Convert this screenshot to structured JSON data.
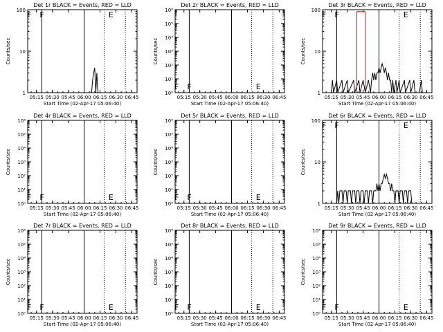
{
  "page": {
    "background": "#ffffff",
    "line_color": "#000000",
    "lld_color": "#ff0000"
  },
  "chart_data": [
    {
      "id": "det1",
      "type": "line",
      "title": "Det 1r BLACK = Events, RED = LLD",
      "xlabel": "Start Time (02-Apr-17 05:06:40)",
      "ylabel": "Counts/sec",
      "xticks": [
        "05:15",
        "05:30",
        "05:45",
        "06:00",
        "06:15",
        "06:30",
        "06:45"
      ],
      "yscale": "log",
      "ylim": [
        1,
        100
      ],
      "yticks": [
        "1",
        "10",
        "100"
      ],
      "flags": [
        {
          "label": "F",
          "x": "05:08"
        },
        {
          "label": "F",
          "x": "05:20"
        },
        {
          "label": "E",
          "x": "06:25"
        }
      ],
      "solid_lines": [
        "05:20",
        "06:00"
      ],
      "dotted_lines": [
        "06:19",
        "06:39"
      ],
      "series": [
        {
          "name": "BLACK = Events",
          "color": "#000000",
          "points": [
            [
              "06:07",
              1
            ],
            [
              "06:08",
              2
            ],
            [
              "06:09",
              3
            ],
            [
              "06:10",
              4
            ],
            [
              "06:11",
              1
            ],
            [
              "06:12",
              3
            ],
            [
              "06:13",
              1
            ]
          ]
        },
        {
          "name": "RED = LLD",
          "color": "#ff0000",
          "points": []
        }
      ]
    },
    {
      "id": "det2",
      "type": "line",
      "title": "Det 2r BLACK = Events, RED = LLD",
      "xlabel": "Start Time (02-Apr-17 05:06:40)",
      "ylabel": "Counts/sec",
      "xticks": [
        "05:15",
        "05:30",
        "05:45",
        "06:00",
        "06:15",
        "06:30",
        "06:45"
      ],
      "yscale": "log",
      "ylim": [
        1,
        1000000
      ],
      "yticks": [
        "10⁰",
        "10¹",
        "10²",
        "10³",
        "10⁴",
        "10⁵",
        "10⁶"
      ],
      "flags": [
        {
          "label": "F",
          "x": "05:08"
        },
        {
          "label": "F",
          "x": "05:20"
        },
        {
          "label": "E",
          "x": "06:25"
        }
      ],
      "solid_lines": [
        "05:20",
        "06:00"
      ],
      "dotted_lines": [
        "06:19",
        "06:39"
      ],
      "series": [
        {
          "name": "BLACK = Events",
          "color": "#000000",
          "points": []
        },
        {
          "name": "RED = LLD",
          "color": "#ff0000",
          "points": []
        }
      ]
    },
    {
      "id": "det3",
      "type": "line",
      "title": "Det 3r BLACK = Events, RED = LLD",
      "xlabel": "Start Time (02-Apr-17 05:06:40)",
      "ylabel": "Counts/sec",
      "xticks": [
        "05:15",
        "05:30",
        "05:45",
        "06:00",
        "06:15",
        "06:30",
        "06:45"
      ],
      "yscale": "log",
      "ylim": [
        1,
        100
      ],
      "yticks": [
        "1",
        "10",
        "100"
      ],
      "flags": [
        {
          "label": "F",
          "x": "05:08"
        },
        {
          "label": "F",
          "x": "05:20"
        },
        {
          "label": "E",
          "x": "06:25"
        }
      ],
      "solid_lines": [
        "05:20",
        "06:00"
      ],
      "dotted_lines": [
        "06:19",
        "06:39"
      ],
      "series": [
        {
          "name": "BLACK = Events",
          "color": "#000000",
          "points": [
            [
              "05:15",
              1
            ],
            [
              "05:16",
              2
            ],
            [
              "05:17",
              1
            ],
            [
              "05:20",
              2
            ],
            [
              "05:21",
              1
            ],
            [
              "05:25",
              2
            ],
            [
              "05:26",
              1
            ],
            [
              "05:30",
              2
            ],
            [
              "05:31",
              1
            ],
            [
              "05:36",
              2
            ],
            [
              "05:37",
              1
            ],
            [
              "05:41",
              2
            ],
            [
              "05:42",
              1
            ],
            [
              "05:45",
              2
            ],
            [
              "05:47",
              1
            ],
            [
              "05:50",
              2
            ],
            [
              "05:52",
              1
            ],
            [
              "05:53",
              2
            ],
            [
              "05:54",
              3
            ],
            [
              "05:55",
              2
            ],
            [
              "05:56",
              3
            ],
            [
              "05:57",
              2
            ],
            [
              "05:58",
              3
            ],
            [
              "05:59",
              3
            ],
            [
              "06:00",
              4
            ],
            [
              "06:01",
              3
            ],
            [
              "06:02",
              4
            ],
            [
              "06:03",
              5
            ],
            [
              "06:04",
              4
            ],
            [
              "06:05",
              3
            ],
            [
              "06:06",
              4
            ],
            [
              "06:07",
              3
            ],
            [
              "06:08",
              2
            ],
            [
              "06:09",
              3
            ],
            [
              "06:10",
              2
            ],
            [
              "06:11",
              2
            ],
            [
              "06:12",
              1
            ],
            [
              "06:13",
              2
            ],
            [
              "06:14",
              1
            ],
            [
              "06:16",
              2
            ],
            [
              "06:17",
              1
            ],
            [
              "06:19",
              2
            ],
            [
              "06:20",
              1
            ],
            [
              "06:24",
              2
            ],
            [
              "06:25",
              1
            ],
            [
              "06:29",
              2
            ],
            [
              "06:30",
              1
            ],
            [
              "06:33",
              2
            ],
            [
              "06:34",
              1
            ],
            [
              "06:38",
              1
            ],
            [
              "06:40",
              2
            ],
            [
              "06:41",
              1
            ]
          ]
        },
        {
          "name": "RED = LLD",
          "color": "#ff0000",
          "points": [
            [
              "05:39",
              90
            ],
            [
              "05:47",
              90
            ]
          ]
        }
      ]
    },
    {
      "id": "det4",
      "type": "line",
      "title": "Det 4r BLACK = Events, RED = LLD",
      "xlabel": "Start Time (02-Apr-17 05:06:40)",
      "ylabel": "Counts/sec",
      "xticks": [
        "05:15",
        "05:30",
        "05:45",
        "06:00",
        "06:15",
        "06:30",
        "06:45"
      ],
      "yscale": "log",
      "ylim": [
        1,
        1000000
      ],
      "yticks": [
        "10⁰",
        "10¹",
        "10²",
        "10³",
        "10⁴",
        "10⁵",
        "10⁶"
      ],
      "flags": [
        {
          "label": "F",
          "x": "05:08"
        },
        {
          "label": "F",
          "x": "05:20"
        },
        {
          "label": "E",
          "x": "06:25"
        }
      ],
      "solid_lines": [
        "05:20",
        "06:00"
      ],
      "dotted_lines": [
        "06:19",
        "06:39"
      ],
      "series": [
        {
          "name": "BLACK = Events",
          "color": "#000000",
          "points": []
        },
        {
          "name": "RED = LLD",
          "color": "#ff0000",
          "points": []
        }
      ]
    },
    {
      "id": "det5",
      "type": "line",
      "title": "Det 5r BLACK = Events, RED = LLD",
      "xlabel": "Start Time (02-Apr-17 05:06:40)",
      "ylabel": "Counts/sec",
      "xticks": [
        "05:15",
        "05:30",
        "05:45",
        "06:00",
        "06:15",
        "06:30",
        "06:45"
      ],
      "yscale": "log",
      "ylim": [
        1,
        1000000
      ],
      "yticks": [
        "10⁰",
        "10¹",
        "10²",
        "10³",
        "10⁴",
        "10⁵",
        "10⁶"
      ],
      "flags": [
        {
          "label": "F",
          "x": "05:08"
        },
        {
          "label": "F",
          "x": "05:20"
        },
        {
          "label": "E",
          "x": "06:25"
        }
      ],
      "solid_lines": [
        "05:20",
        "06:00"
      ],
      "dotted_lines": [
        "06:19",
        "06:39"
      ],
      "series": [
        {
          "name": "BLACK = Events",
          "color": "#000000",
          "points": []
        },
        {
          "name": "RED = LLD",
          "color": "#ff0000",
          "points": []
        }
      ]
    },
    {
      "id": "det6",
      "type": "line",
      "title": "Det 6r BLACK = Events, RED = LLD",
      "xlabel": "Start Time (02-Apr-17 05:06:40)",
      "ylabel": "Counts/sec",
      "xticks": [
        "05:15",
        "05:30",
        "05:45",
        "06:00",
        "06:15",
        "06:30",
        "06:45"
      ],
      "yscale": "log",
      "ylim": [
        1,
        100
      ],
      "yticks": [
        "1",
        "10",
        "100"
      ],
      "flags": [
        {
          "label": "F",
          "x": "05:08"
        },
        {
          "label": "F",
          "x": "05:20"
        },
        {
          "label": "E",
          "x": "06:25"
        }
      ],
      "solid_lines": [
        "05:20",
        "06:00"
      ],
      "dotted_lines": [
        "06:19",
        "06:39"
      ],
      "series": [
        {
          "name": "BLACK = Events",
          "color": "#000000",
          "points": [
            [
              "05:20",
              1
            ],
            [
              "05:21",
              2
            ],
            [
              "05:22",
              1
            ],
            [
              "05:23",
              2
            ],
            [
              "05:25",
              2
            ],
            [
              "05:26",
              1
            ],
            [
              "05:27",
              2
            ],
            [
              "05:29",
              2
            ],
            [
              "05:30",
              1
            ],
            [
              "05:31",
              2
            ],
            [
              "05:33",
              2
            ],
            [
              "05:34",
              1
            ],
            [
              "05:35",
              2
            ],
            [
              "05:37",
              2
            ],
            [
              "05:38",
              1
            ],
            [
              "05:39",
              2
            ],
            [
              "05:41",
              2
            ],
            [
              "05:42",
              1
            ],
            [
              "05:43",
              2
            ],
            [
              "05:45",
              2
            ],
            [
              "05:46",
              1
            ],
            [
              "05:47",
              2
            ],
            [
              "05:49",
              2
            ],
            [
              "05:50",
              1
            ],
            [
              "05:51",
              2
            ],
            [
              "05:53",
              2
            ],
            [
              "05:54",
              1
            ],
            [
              "05:55",
              2
            ],
            [
              "05:57",
              2
            ],
            [
              "05:58",
              3
            ],
            [
              "05:59",
              2
            ],
            [
              "06:00",
              3
            ],
            [
              "06:01",
              2
            ],
            [
              "06:02",
              3
            ],
            [
              "06:03",
              3
            ],
            [
              "06:04",
              4
            ],
            [
              "06:05",
              5
            ],
            [
              "06:06",
              4
            ],
            [
              "06:07",
              5
            ],
            [
              "06:08",
              4
            ],
            [
              "06:09",
              3
            ],
            [
              "06:10",
              3
            ],
            [
              "06:11",
              2
            ],
            [
              "06:12",
              3
            ],
            [
              "06:13",
              2
            ],
            [
              "06:14",
              2
            ],
            [
              "06:15",
              1
            ],
            [
              "06:16",
              2
            ],
            [
              "06:18",
              2
            ],
            [
              "06:19",
              1
            ],
            [
              "06:20",
              2
            ],
            [
              "06:22",
              2
            ],
            [
              "06:23",
              1
            ],
            [
              "06:24",
              2
            ],
            [
              "06:26",
              2
            ],
            [
              "06:27",
              1
            ],
            [
              "06:28",
              2
            ],
            [
              "06:30",
              2
            ],
            [
              "06:31",
              1
            ]
          ]
        },
        {
          "name": "RED = LLD",
          "color": "#ff0000",
          "points": []
        }
      ]
    },
    {
      "id": "det7",
      "type": "line",
      "title": "Det 7r BLACK = Events, RED = LLD",
      "xlabel": "Start Time (02-Apr-17 05:06:40)",
      "ylabel": "Counts/sec",
      "xticks": [
        "05:15",
        "05:30",
        "05:45",
        "06:00",
        "06:15",
        "06:30",
        "06:45"
      ],
      "yscale": "log",
      "ylim": [
        1,
        1000000
      ],
      "yticks": [
        "10⁰",
        "10¹",
        "10²",
        "10³",
        "10⁴",
        "10⁵",
        "10⁶"
      ],
      "flags": [
        {
          "label": "F",
          "x": "05:08"
        },
        {
          "label": "F",
          "x": "05:20"
        },
        {
          "label": "E",
          "x": "06:25"
        }
      ],
      "solid_lines": [
        "05:20",
        "06:00"
      ],
      "dotted_lines": [
        "06:19",
        "06:39"
      ],
      "series": [
        {
          "name": "BLACK = Events",
          "color": "#000000",
          "points": []
        },
        {
          "name": "RED = LLD",
          "color": "#ff0000",
          "points": []
        }
      ]
    },
    {
      "id": "det8",
      "type": "line",
      "title": "Det 8r BLACK = Events, RED = LLD",
      "xlabel": "Start Time (02-Apr-17 05:06:40)",
      "ylabel": "Counts/sec",
      "xticks": [
        "05:15",
        "05:30",
        "05:45",
        "06:00",
        "06:15",
        "06:30",
        "06:45"
      ],
      "yscale": "log",
      "ylim": [
        1,
        1000000
      ],
      "yticks": [
        "10⁰",
        "10¹",
        "10²",
        "10³",
        "10⁴",
        "10⁵",
        "10⁶"
      ],
      "flags": [
        {
          "label": "F",
          "x": "05:08"
        },
        {
          "label": "F",
          "x": "05:20"
        },
        {
          "label": "E",
          "x": "06:25"
        }
      ],
      "solid_lines": [
        "05:20",
        "06:00"
      ],
      "dotted_lines": [
        "06:19",
        "06:39"
      ],
      "series": [
        {
          "name": "BLACK = Events",
          "color": "#000000",
          "points": []
        },
        {
          "name": "RED = LLD",
          "color": "#ff0000",
          "points": []
        }
      ]
    },
    {
      "id": "det9",
      "type": "line",
      "title": "Det 9r BLACK = Events, RED = LLD",
      "xlabel": "Start Time (02-Apr-17 05:06:40)",
      "ylabel": "Counts/sec",
      "xticks": [
        "05:15",
        "05:30",
        "05:45",
        "06:00",
        "06:15",
        "06:30",
        "06:45"
      ],
      "yscale": "log",
      "ylim": [
        1,
        1000000
      ],
      "yticks": [
        "10⁰",
        "10¹",
        "10²",
        "10³",
        "10⁴",
        "10⁵",
        "10⁶"
      ],
      "flags": [
        {
          "label": "F",
          "x": "05:08"
        },
        {
          "label": "F",
          "x": "05:20"
        },
        {
          "label": "E",
          "x": "06:25"
        }
      ],
      "solid_lines": [
        "05:20",
        "06:00"
      ],
      "dotted_lines": [
        "06:19",
        "06:39"
      ],
      "series": [
        {
          "name": "BLACK = Events",
          "color": "#000000",
          "points": []
        },
        {
          "name": "RED = LLD",
          "color": "#ff0000",
          "points": []
        }
      ]
    }
  ]
}
